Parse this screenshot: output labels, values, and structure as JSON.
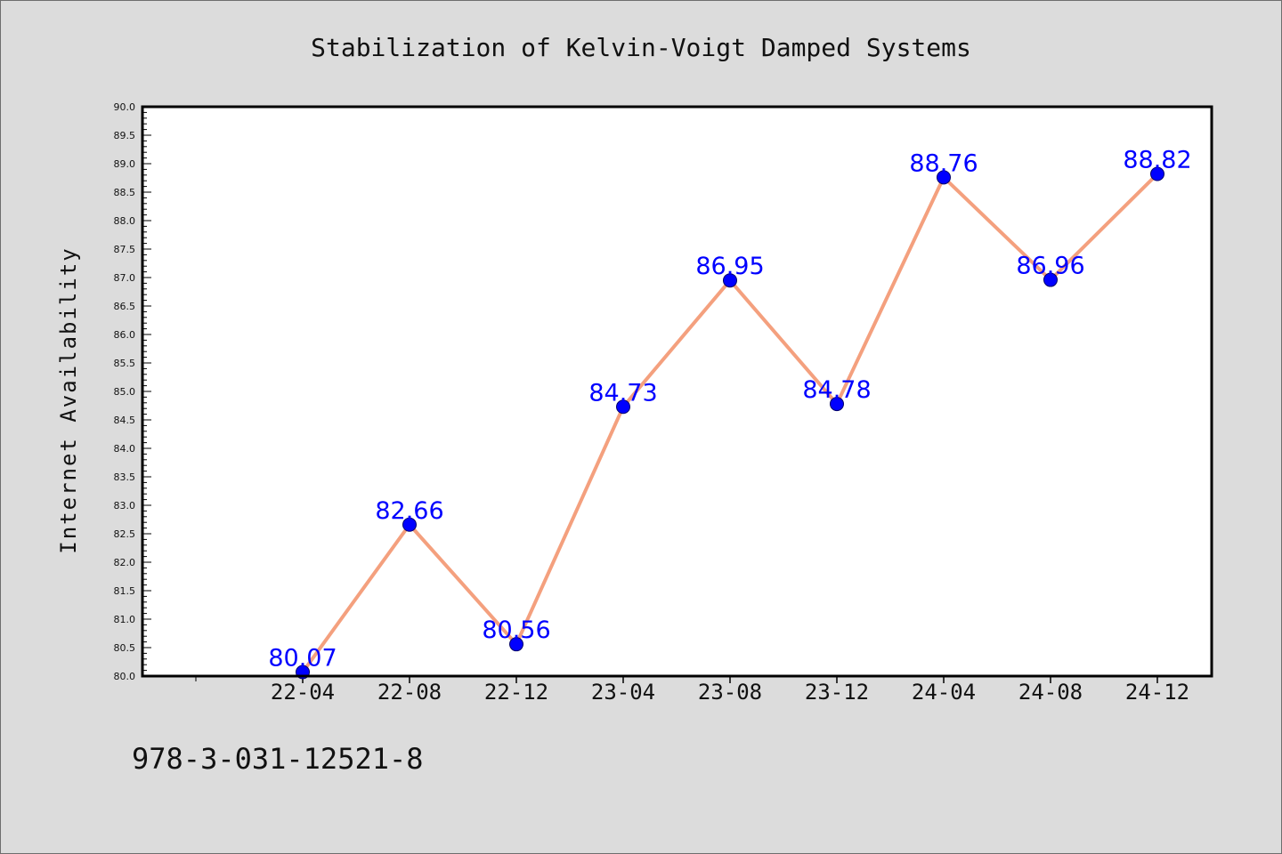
{
  "chart_data": {
    "type": "line",
    "title": "Stabilization of Kelvin-Voigt Damped Systems",
    "xlabel": "",
    "ylabel": "Internet Availability",
    "categories": [
      "22-04",
      "22-08",
      "22-12",
      "23-04",
      "23-08",
      "23-12",
      "24-04",
      "24-08",
      "24-12"
    ],
    "series": [
      {
        "values": [
          80.07,
          82.66,
          80.56,
          84.73,
          86.95,
          84.78,
          88.76,
          86.96,
          88.82
        ]
      }
    ],
    "data_labels": [
      "80.07",
      "82.66",
      "80.56",
      "84.73",
      "86.95",
      "84.78",
      "88.76",
      "86.96",
      "88.82"
    ],
    "ylim": [
      80.0,
      90.0
    ],
    "yticks": [
      "80.0",
      "80.5",
      "81.0",
      "81.5",
      "82.0",
      "82.5",
      "83.0",
      "83.5",
      "84.0",
      "84.5",
      "85.0",
      "85.5",
      "86.0",
      "86.5",
      "87.0",
      "87.5",
      "88.0",
      "88.5",
      "89.0",
      "89.5",
      "90.0"
    ],
    "grid": false,
    "legend": "none",
    "colors": {
      "line": "#f4a07e",
      "marker": "#0000ff",
      "label": "#0000ff",
      "plot_background": "#ffffff",
      "figure_background": "#dcdcdc"
    }
  },
  "footer": {
    "isbn": "978-3-031-12521-8"
  }
}
